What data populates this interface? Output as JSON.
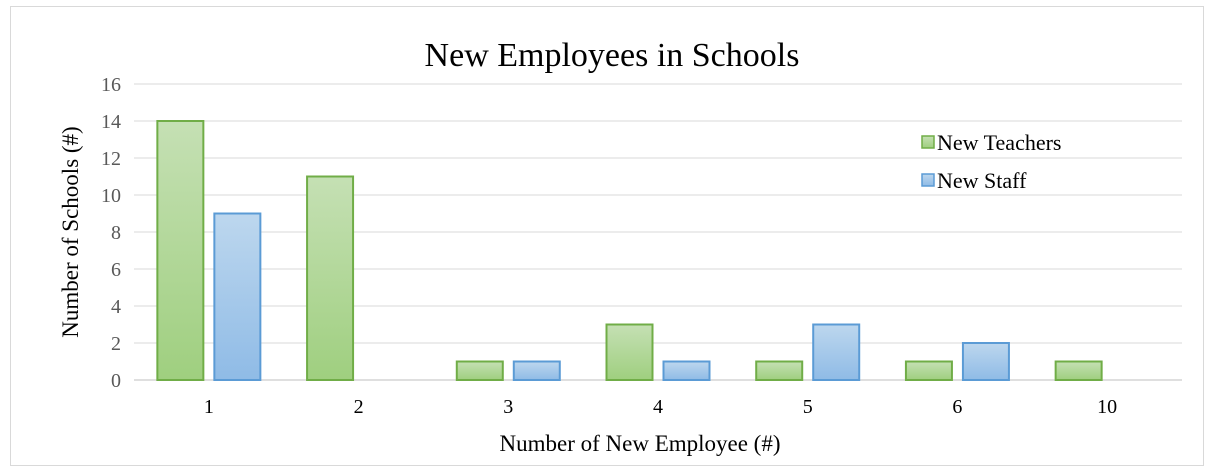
{
  "chart_data": {
    "type": "bar",
    "title": "New Employees in Schools",
    "xlabel": "Number of New Employee (#)",
    "ylabel": "Number of Schools (#)",
    "categories": [
      "1",
      "2",
      "3",
      "4",
      "5",
      "6",
      "10"
    ],
    "series": [
      {
        "name": "New Teachers",
        "values": [
          14,
          11,
          1,
          3,
          1,
          1,
          1
        ],
        "color": "#a9d18e",
        "stroke": "#70ad47"
      },
      {
        "name": "New Staff",
        "values": [
          9,
          0,
          1,
          1,
          3,
          2,
          0
        ],
        "color": "#9dc3e6",
        "stroke": "#5b9bd5"
      }
    ],
    "ylim": [
      0,
      16
    ],
    "yticks": [
      0,
      2,
      4,
      6,
      8,
      10,
      12,
      14,
      16
    ],
    "grid": true,
    "legend_position": "right"
  }
}
